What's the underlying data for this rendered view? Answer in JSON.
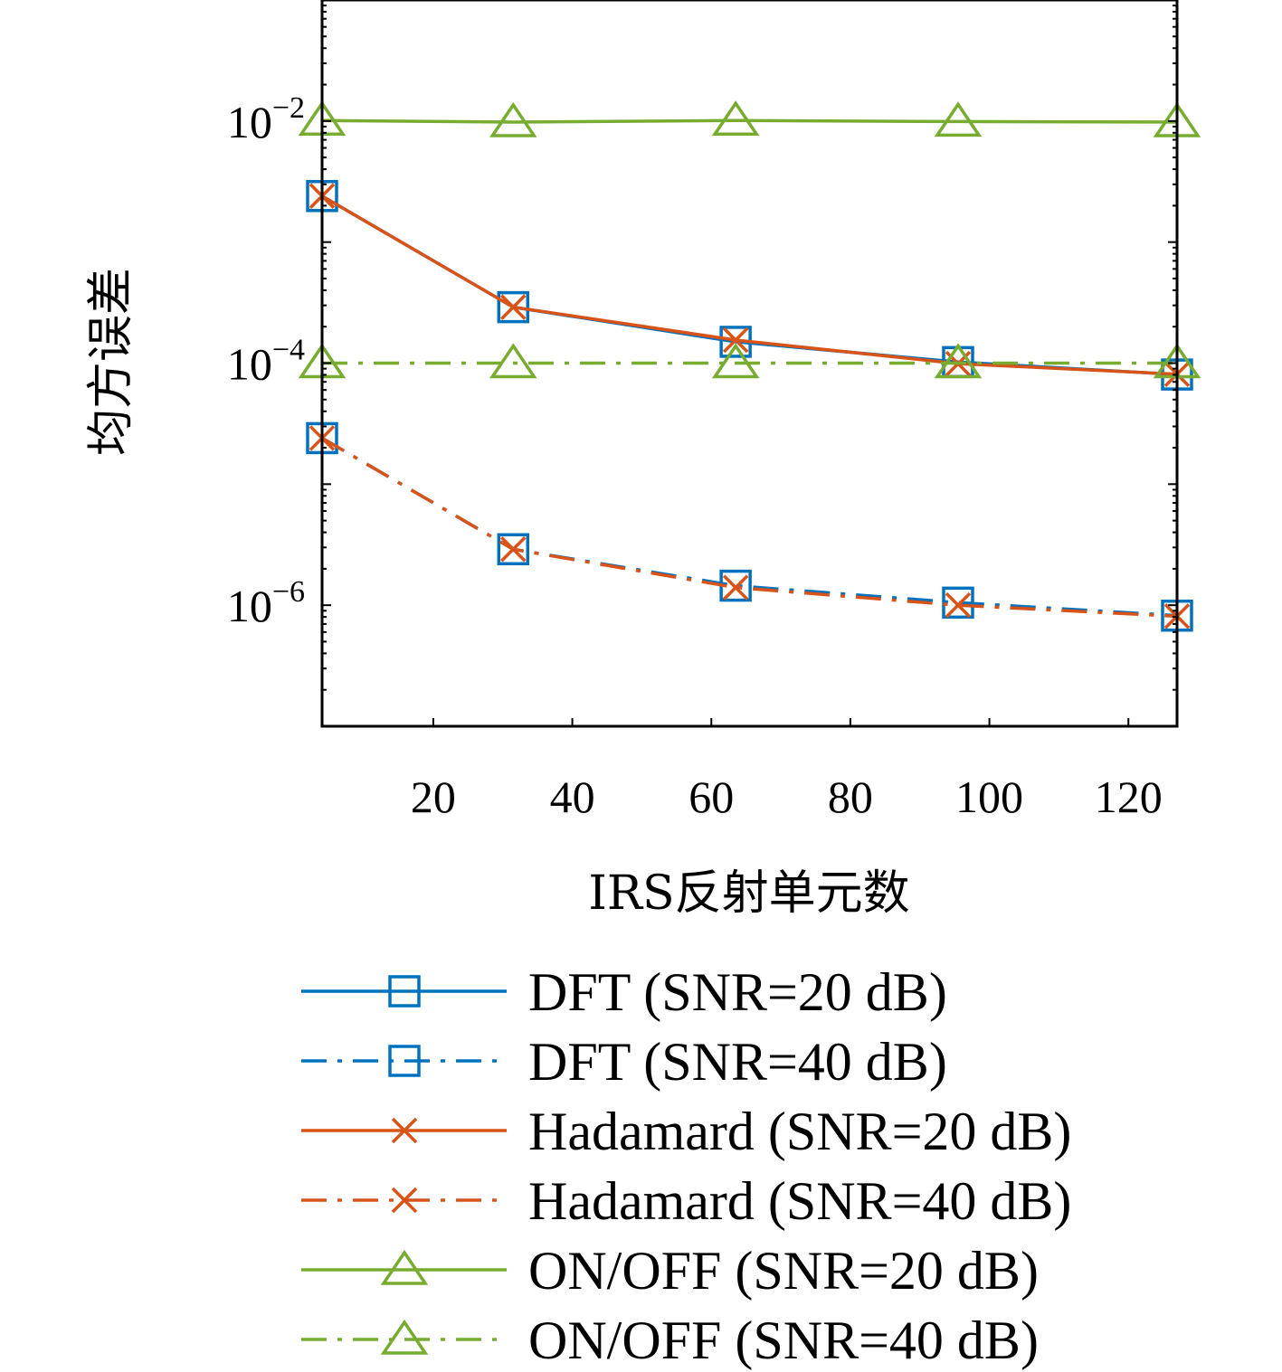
{
  "chart_data": {
    "type": "line",
    "title": "",
    "xlabel": "IRS反射单元数",
    "ylabel": "均方误差",
    "xlim": [
      4,
      127
    ],
    "ylim": [
      1e-07,
      0.1
    ],
    "yscale": "log",
    "xticks": [
      20,
      40,
      60,
      80,
      100,
      120
    ],
    "xtick_labels": [
      "20",
      "40",
      "60",
      "80",
      "100",
      "120"
    ],
    "yticks": [
      1e-06,
      0.0001,
      0.01
    ],
    "ytick_labels": [
      {
        "base": "10",
        "exp": "−6"
      },
      {
        "base": "10",
        "exp": "−4"
      },
      {
        "base": "10",
        "exp": "−2"
      }
    ],
    "grid": false,
    "legend_position": "below",
    "x": [
      4,
      31.5,
      63.5,
      95.5,
      127
    ],
    "series": [
      {
        "name": "DFT (SNR=20 dB)",
        "color": "#0072BD",
        "dash": "solid",
        "marker": "square",
        "values": [
          0.0024,
          0.00029,
          0.00015,
          0.000102,
          8.05e-05
        ]
      },
      {
        "name": "DFT (SNR=40 dB)",
        "color": "#0072BD",
        "dash": "dashdot",
        "marker": "square",
        "values": [
          2.4e-05,
          2.9e-06,
          1.45e-06,
          1.05e-06,
          8.2e-07
        ]
      },
      {
        "name": "Hadamard (SNR=20 dB)",
        "color": "#D95319",
        "dash": "solid",
        "marker": "x",
        "values": [
          0.0024,
          0.00029,
          0.000155,
          9.9e-05,
          8.1e-05
        ]
      },
      {
        "name": "Hadamard (SNR=40 dB)",
        "color": "#D95319",
        "dash": "dashdot",
        "marker": "x",
        "values": [
          2.4e-05,
          2.9e-06,
          1.4e-06,
          1e-06,
          8.1e-07
        ]
      },
      {
        "name": "ON/OFF (SNR=20 dB)",
        "color": "#77AC30",
        "dash": "solid",
        "marker": "triangle",
        "values": [
          0.0101,
          0.0098,
          0.0101,
          0.0099,
          0.0098
        ]
      },
      {
        "name": "ON/OFF (SNR=40 dB)",
        "color": "#77AC30",
        "dash": "dashdot",
        "marker": "triangle",
        "values": [
          0.0001,
          0.0001,
          0.0001,
          0.0001,
          0.0001
        ]
      }
    ]
  }
}
